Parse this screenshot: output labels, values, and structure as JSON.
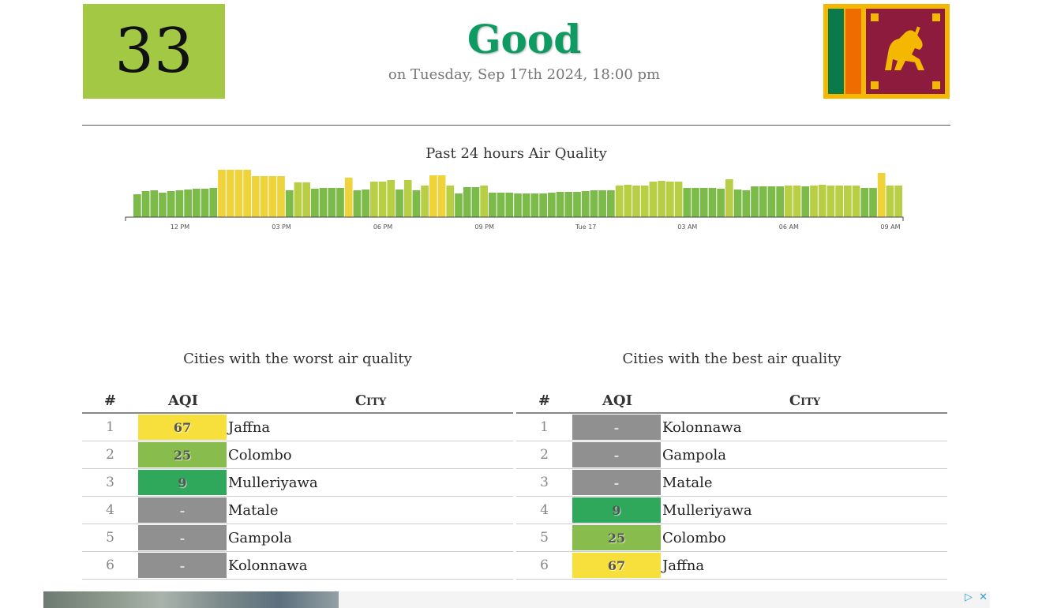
{
  "header": {
    "aqi_value": "33",
    "aqi_color": "#a3c843",
    "status": "Good",
    "status_color": "#0d9b61",
    "date": "on Tuesday, Sep 17th 2024, 18:00 pm"
  },
  "flag": {
    "icon": "sri-lanka-flag-icon"
  },
  "chart_data": {
    "type": "bar",
    "title": "Past 24 hours Air Quality",
    "x_tick_labels": [
      "12 PM",
      "03 PM",
      "06 PM",
      "09 PM",
      "Tue 17",
      "03 AM",
      "06 AM",
      "09 AM"
    ],
    "values": [
      29,
      33,
      34,
      31,
      33,
      34,
      35,
      36,
      36,
      37,
      60,
      60,
      60,
      60,
      52,
      52,
      52,
      52,
      34,
      44,
      44,
      36,
      37,
      37,
      37,
      50,
      34,
      35,
      45,
      45,
      47,
      35,
      47,
      34,
      40,
      53,
      53,
      40,
      30,
      38,
      38,
      40,
      31,
      31,
      31,
      30,
      30,
      30,
      30,
      31,
      32,
      32,
      32,
      33,
      34,
      34,
      34,
      40,
      41,
      40,
      40,
      45,
      46,
      45,
      45,
      37,
      37,
      37,
      37,
      36,
      48,
      35,
      34,
      39,
      39,
      39,
      39,
      40,
      40,
      39,
      40,
      41,
      40,
      40,
      40,
      40,
      37,
      37,
      56,
      40,
      40
    ],
    "ylim": [
      0,
      70
    ],
    "colors": {
      "good": "#7cbb4a",
      "moderate": "#b8cf45",
      "unhealthy_sensitive": "#eed33a"
    }
  },
  "worst": {
    "title": "Cities with the worst air quality",
    "headers": {
      "rank": "#",
      "aqi": "AQI",
      "city": "City"
    },
    "rows": [
      {
        "rank": "1",
        "aqi": "67",
        "city": "Jaffna",
        "color": "#f7e03c"
      },
      {
        "rank": "2",
        "aqi": "25",
        "city": "Colombo",
        "color": "#88bd4d"
      },
      {
        "rank": "3",
        "aqi": "9",
        "city": "Mulleriyawa",
        "color": "#2fa85c"
      },
      {
        "rank": "4",
        "aqi": "-",
        "city": "Matale",
        "color": "#909090"
      },
      {
        "rank": "5",
        "aqi": "-",
        "city": "Gampola",
        "color": "#909090"
      },
      {
        "rank": "6",
        "aqi": "-",
        "city": "Kolonnawa",
        "color": "#909090"
      }
    ]
  },
  "best": {
    "title": "Cities with the best air quality",
    "headers": {
      "rank": "#",
      "aqi": "AQI",
      "city": "City"
    },
    "rows": [
      {
        "rank": "1",
        "aqi": "-",
        "city": "Kolonnawa",
        "color": "#909090"
      },
      {
        "rank": "2",
        "aqi": "-",
        "city": "Gampola",
        "color": "#909090"
      },
      {
        "rank": "3",
        "aqi": "-",
        "city": "Matale",
        "color": "#909090"
      },
      {
        "rank": "4",
        "aqi": "9",
        "city": "Mulleriyawa",
        "color": "#2fa85c"
      },
      {
        "rank": "5",
        "aqi": "25",
        "city": "Colombo",
        "color": "#88bd4d"
      },
      {
        "rank": "6",
        "aqi": "67",
        "city": "Jaffna",
        "color": "#f7e03c"
      }
    ]
  },
  "ad": {
    "play_icon": "ad-choices-icon",
    "close_icon": "close-icon"
  }
}
